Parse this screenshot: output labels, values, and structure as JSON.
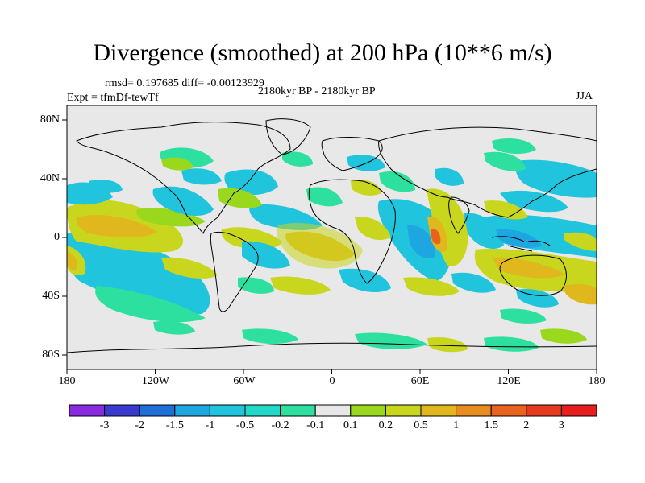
{
  "header": {
    "title": "Divergence (smoothed) at 200 hPa (10**6 m/s)",
    "stats": "rmsd= 0.197685 diff= -0.00123929",
    "period": "2180kyr BP - 2180kyr BP",
    "experiment": "Expt = tfmDf-tewTf",
    "season": "JJA"
  },
  "axes": {
    "lon_ticks": [
      "180",
      "120W",
      "60W",
      "0",
      "60E",
      "120E",
      "180"
    ],
    "lat_ticks": [
      "80N",
      "40N",
      "0",
      "40S",
      "80S"
    ]
  },
  "colorbar": {
    "labels": [
      "-3",
      "-2",
      "-1.5",
      "-1",
      "-0.5",
      "-0.2",
      "-0.1",
      "0.1",
      "0.2",
      "0.5",
      "1",
      "1.5",
      "2",
      "3"
    ],
    "colors": [
      "#8a2be2",
      "#3a3ad0",
      "#1f6fd8",
      "#1ea6e0",
      "#20c4dc",
      "#22d8c8",
      "#2ee0a0",
      "#e8e8e8",
      "#9ad81e",
      "#c8d61e",
      "#e0b81e",
      "#e88c1e",
      "#e8641e",
      "#e83a1e",
      "#e81e1e"
    ]
  },
  "map": {
    "background": "#e8e8e8",
    "colors": {
      "cyan": "#20c4dc",
      "teal": "#2ee0a0",
      "blue": "#1ea6e0",
      "green": "#9ad81e",
      "yellow": "#c8d61e",
      "orange": "#e0b81e",
      "dorange": "#e88c1e",
      "red": "#e8641e"
    }
  }
}
